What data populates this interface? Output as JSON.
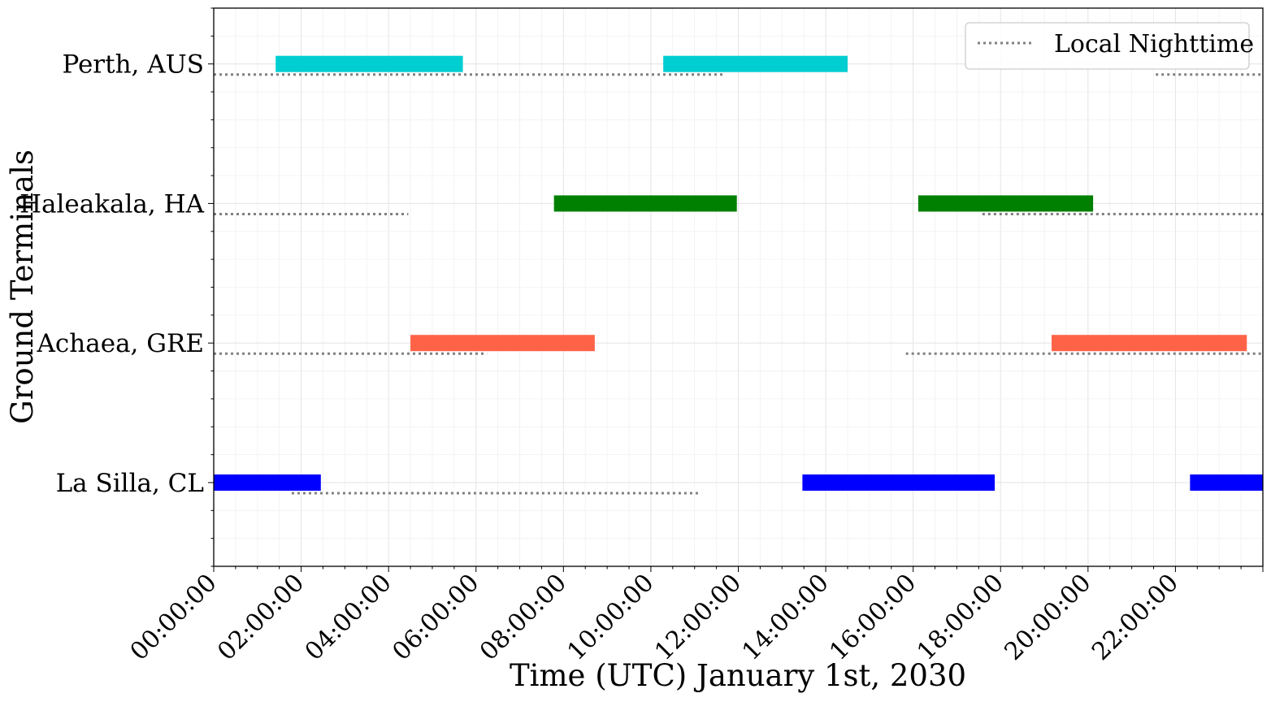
{
  "chart_data": {
    "type": "gantt",
    "xlabel": "Time (UTC) January 1st, 2030",
    "ylabel": "Ground Terminals",
    "x_unit": "time of day (UTC, hours)",
    "xlim": [
      "00:00:00",
      "24:00:00"
    ],
    "x_ticks": [
      "00:00:00",
      "02:00:00",
      "04:00:00",
      "06:00:00",
      "08:00:00",
      "10:00:00",
      "12:00:00",
      "14:00:00",
      "16:00:00",
      "18:00:00",
      "20:00:00",
      "22:00:00"
    ],
    "grid": true,
    "legend": {
      "position": "top-right",
      "entries": [
        {
          "label": "Local Nighttime",
          "style": "dotted",
          "color": "#808080"
        }
      ]
    },
    "terminals": [
      {
        "name": "Perth, AUS",
        "color": "#00ced1",
        "windows": [
          [
            "01:25:00",
            "05:42:00"
          ],
          [
            "10:17:00",
            "14:30:00"
          ]
        ],
        "nighttime": [
          [
            "00:00:00",
            "11:42:00"
          ],
          [
            "21:33:00",
            "24:00:00"
          ]
        ]
      },
      {
        "name": "Haleakala, HA",
        "color": "#008000",
        "windows": [
          [
            "07:47:00",
            "11:58:00"
          ],
          [
            "16:07:00",
            "20:07:00"
          ]
        ],
        "nighttime": [
          [
            "00:00:00",
            "04:27:00"
          ],
          [
            "17:35:00",
            "24:00:00"
          ]
        ]
      },
      {
        "name": "Achaea, GRE",
        "color": "#ff6347",
        "windows": [
          [
            "04:30:00",
            "08:43:00"
          ],
          [
            "19:10:00",
            "23:38:00"
          ]
        ],
        "nighttime": [
          [
            "00:00:00",
            "06:15:00"
          ],
          [
            "15:50:00",
            "24:00:00"
          ]
        ]
      },
      {
        "name": "La Silla, CL",
        "color": "#0000ff",
        "windows": [
          [
            "00:00:00",
            "02:27:00"
          ],
          [
            "13:28:00",
            "17:52:00"
          ],
          [
            "22:20:00",
            "24:00:00"
          ]
        ],
        "nighttime": [
          [
            "01:47:00",
            "11:08:00"
          ]
        ]
      }
    ]
  }
}
